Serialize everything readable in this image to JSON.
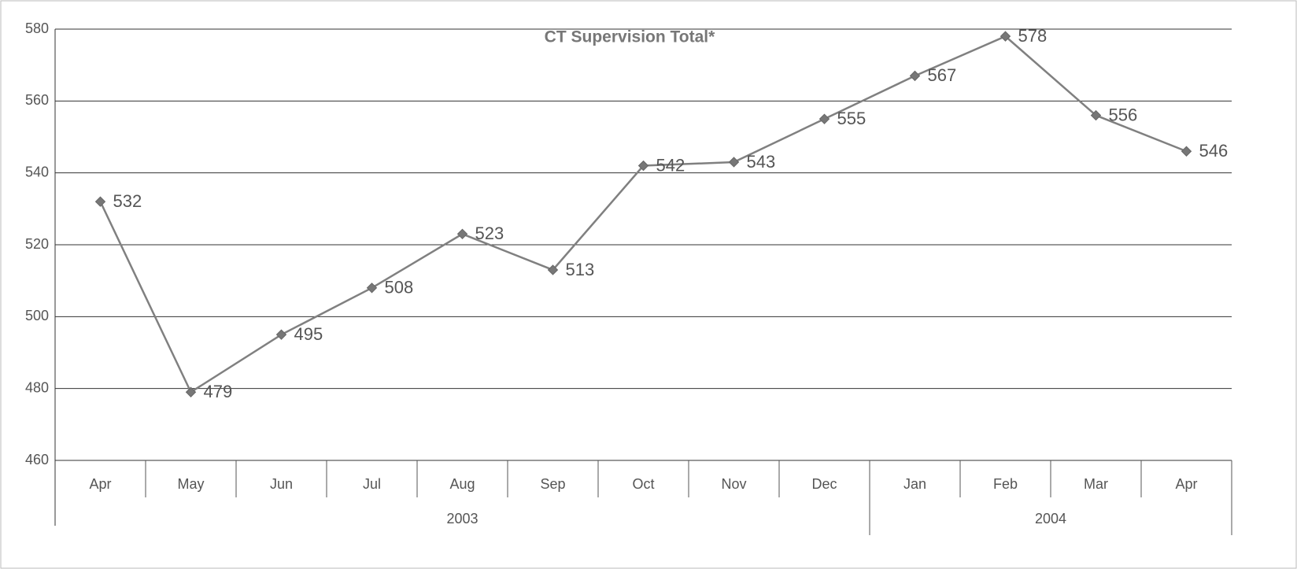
{
  "chart_data": {
    "type": "line",
    "title": "CT Supervision Total*",
    "categories": [
      "Apr",
      "May",
      "Jun",
      "Jul",
      "Aug",
      "Sep",
      "Oct",
      "Nov",
      "Dec",
      "Jan",
      "Feb",
      "Mar",
      "Apr"
    ],
    "groups": [
      {
        "name": "2003",
        "count": 9
      },
      {
        "name": "2004",
        "count": 4
      }
    ],
    "values": [
      532,
      479,
      495,
      508,
      523,
      513,
      542,
      543,
      555,
      567,
      578,
      556,
      546
    ],
    "color": "#808080",
    "ylim": [
      460,
      580
    ],
    "yticks": [
      460,
      480,
      500,
      520,
      540,
      560,
      580
    ],
    "grid": true
  }
}
